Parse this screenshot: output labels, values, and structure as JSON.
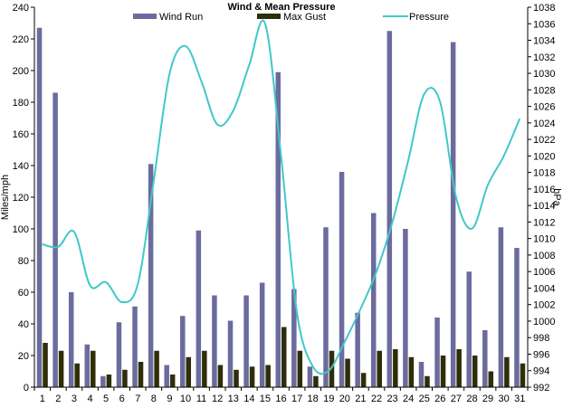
{
  "chart_data": {
    "type": "bar",
    "title": "Wind & Mean Pressure",
    "ylabel": "Miles/mph",
    "y2label": "hPa",
    "xlabel": "",
    "categories": [
      "1",
      "2",
      "3",
      "4",
      "5",
      "6",
      "7",
      "8",
      "9",
      "10",
      "11",
      "12",
      "13",
      "14",
      "15",
      "16",
      "17",
      "18",
      "19",
      "20",
      "21",
      "22",
      "23",
      "24",
      "25",
      "26",
      "27",
      "28",
      "29",
      "30",
      "31"
    ],
    "ylim": [
      0,
      240
    ],
    "yticks": [
      "0",
      "20",
      "40",
      "60",
      "80",
      "100",
      "120",
      "140",
      "160",
      "180",
      "200",
      "220",
      "240"
    ],
    "y2lim": [
      992,
      1038
    ],
    "y2ticks": [
      "992",
      "994",
      "996",
      "998",
      "1000",
      "1002",
      "1004",
      "1006",
      "1008",
      "1010",
      "1012",
      "1014",
      "1016",
      "1018",
      "1020",
      "1022",
      "1024",
      "1026",
      "1028",
      "1030",
      "1032",
      "1034",
      "1036",
      "1038"
    ],
    "legend_position": "top",
    "grid": false,
    "series": [
      {
        "name": "Wind Run",
        "type": "bar",
        "color": "#6b6b9e",
        "values": [
          227,
          186,
          60,
          27,
          7,
          41,
          51,
          141,
          14,
          45,
          99,
          58,
          42,
          58,
          66,
          199,
          62,
          13,
          101,
          136,
          47,
          110,
          225,
          100,
          16,
          44,
          218,
          73,
          36,
          101,
          88
        ]
      },
      {
        "name": "Max Gust",
        "type": "bar",
        "color": "#2e2e0a",
        "values": [
          28,
          23,
          15,
          23,
          8,
          11,
          16,
          23,
          8,
          19,
          23,
          14,
          11,
          13,
          14,
          38,
          23,
          7,
          23,
          18,
          9,
          23,
          24,
          19,
          7,
          20,
          24,
          20,
          10,
          19,
          15
        ]
      },
      {
        "name": "Pressure",
        "type": "line",
        "axis": "right",
        "color": "#40c8c8",
        "values": [
          1009.3,
          1009.0,
          1010.8,
          1004.3,
          1004.7,
          1002.3,
          1004.5,
          1017.0,
          1030.0,
          1033.3,
          1029.0,
          1023.8,
          1025.5,
          1031.0,
          1036.0,
          1020.0,
          1001.0,
          994.5,
          994.0,
          997.5,
          1001.5,
          1006.0,
          1012.0,
          1019.5,
          1027.5,
          1026.5,
          1015.0,
          1011.2,
          1016.5,
          1020.0,
          1024.5
        ]
      }
    ]
  }
}
